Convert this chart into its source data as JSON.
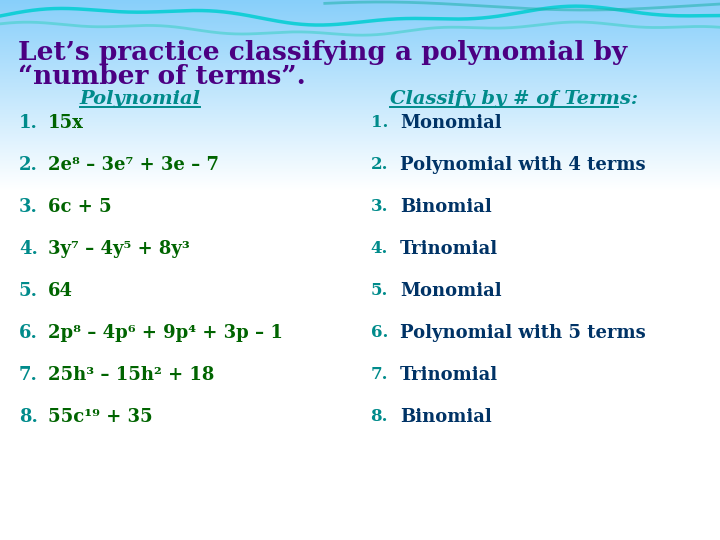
{
  "title_line1": "Let’s practice classifying a polynomial by",
  "title_line2": "“number of terms”.",
  "title_color": "#4B0082",
  "header_color": "#008B8B",
  "number_color": "#008B8B",
  "poly_color": "#006400",
  "classify_color": "#003366",
  "col1_header": "Polynomial",
  "col2_header": "Classify by # of Terms:",
  "polynomials": [
    "15x",
    "2e⁸ – 3e⁷ + 3e – 7",
    "6c + 5",
    "3y⁷ – 4y⁵ + 8y³",
    "64",
    "2p⁸ – 4p⁶ + 9p⁴ + 3p – 1",
    "25h³ – 15h² + 18",
    "55c¹⁹ + 35"
  ],
  "classifications": [
    "Monomial",
    "Polynomial with 4 terms",
    "Binomial",
    "Trinomial",
    "Monomial",
    "Polynomial with 5 terms",
    "Trinomial",
    "Binomial"
  ],
  "fig_width": 7.2,
  "fig_height": 5.4,
  "dpi": 100
}
